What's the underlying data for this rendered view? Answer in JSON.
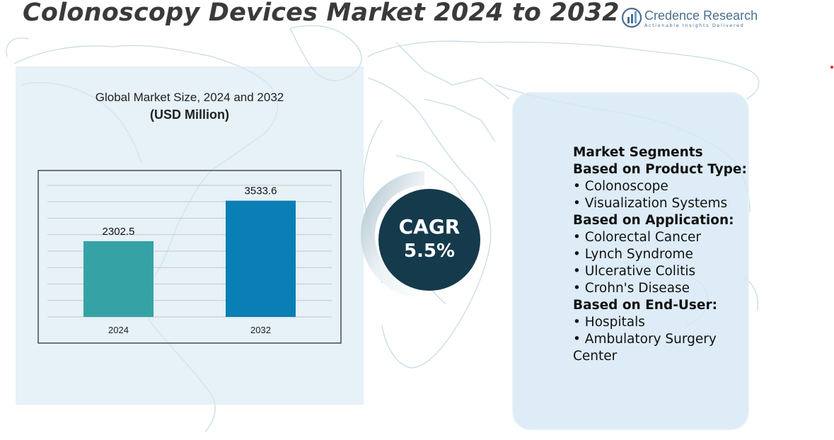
{
  "title": "Colonoscopy Devices Market 2024 to 2032",
  "logo": {
    "name": "Credence Research",
    "tagline": "Actionable Insights Delivered"
  },
  "chart_data": {
    "type": "bar",
    "title": "Global Market Size, 2024 and 2032",
    "subtitle": "(USD Million)",
    "categories": [
      "2024",
      "2032"
    ],
    "values": [
      2302.5,
      3533.6
    ],
    "data_labels": [
      "2302.5",
      "3533.6"
    ],
    "colors": [
      "#35a3a5",
      "#0a7fb5"
    ],
    "ylim": [
      0,
      4000
    ],
    "grid": true,
    "xlabel": "",
    "ylabel": ""
  },
  "cagr": {
    "label": "CAGR",
    "value": "5.5%"
  },
  "segments": {
    "heading": "Market Segments",
    "groups": [
      {
        "title": "Based on Product Type:",
        "items": [
          "• Colonoscope",
          "• Visualization Systems"
        ]
      },
      {
        "title": "Based on Application:",
        "items": [
          "• Colorectal Cancer",
          "• Lynch Syndrome",
          "• Ulcerative Colitis",
          "• Crohn's Disease"
        ]
      },
      {
        "title": "Based on End-User:",
        "items": [
          "• Hospitals",
          "• Ambulatory Surgery Center"
        ]
      }
    ]
  },
  "colors": {
    "title_text": "#3a3a3a",
    "panel_bg": "#d6e8f4",
    "cagr_circle": "#143a4c",
    "map_lines": "#c5d8e6"
  }
}
